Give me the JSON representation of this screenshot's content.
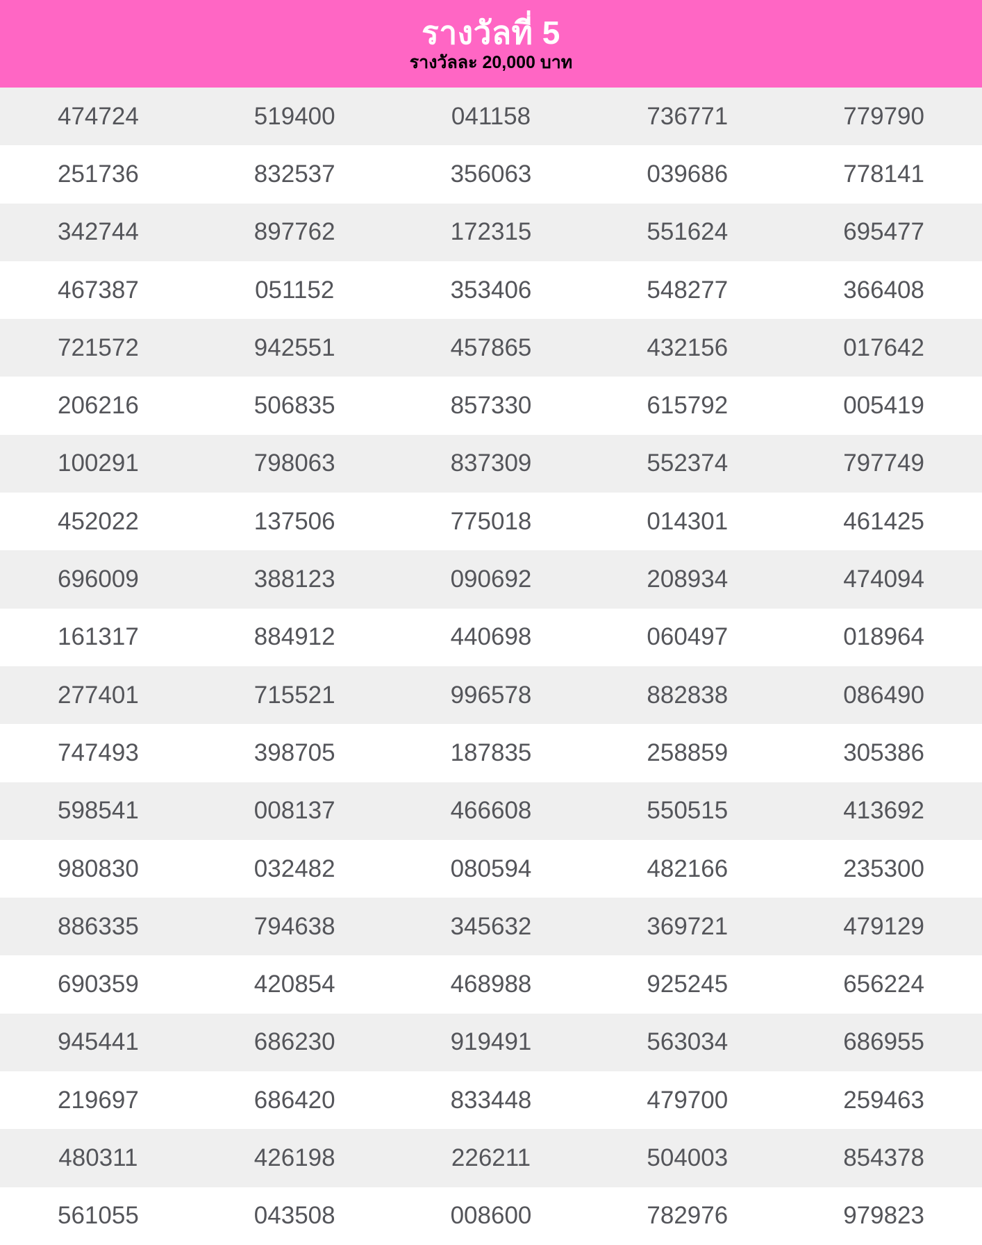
{
  "header": {
    "title": "รางวัลที่ 5",
    "subtitle": "รางวัลละ 20,000 บาท"
  },
  "colors": {
    "header_bg": "#ff66c4",
    "title_color": "#ffffff",
    "subtitle_color": "#000000",
    "row_alt_bg": "#efefef",
    "row_bg": "#ffffff",
    "number_color": "#54555a"
  },
  "table": {
    "columns": 5,
    "rows": [
      [
        "474724",
        "519400",
        "041158",
        "736771",
        "779790"
      ],
      [
        "251736",
        "832537",
        "356063",
        "039686",
        "778141"
      ],
      [
        "342744",
        "897762",
        "172315",
        "551624",
        "695477"
      ],
      [
        "467387",
        "051152",
        "353406",
        "548277",
        "366408"
      ],
      [
        "721572",
        "942551",
        "457865",
        "432156",
        "017642"
      ],
      [
        "206216",
        "506835",
        "857330",
        "615792",
        "005419"
      ],
      [
        "100291",
        "798063",
        "837309",
        "552374",
        "797749"
      ],
      [
        "452022",
        "137506",
        "775018",
        "014301",
        "461425"
      ],
      [
        "696009",
        "388123",
        "090692",
        "208934",
        "474094"
      ],
      [
        "161317",
        "884912",
        "440698",
        "060497",
        "018964"
      ],
      [
        "277401",
        "715521",
        "996578",
        "882838",
        "086490"
      ],
      [
        "747493",
        "398705",
        "187835",
        "258859",
        "305386"
      ],
      [
        "598541",
        "008137",
        "466608",
        "550515",
        "413692"
      ],
      [
        "980830",
        "032482",
        "080594",
        "482166",
        "235300"
      ],
      [
        "886335",
        "794638",
        "345632",
        "369721",
        "479129"
      ],
      [
        "690359",
        "420854",
        "468988",
        "925245",
        "656224"
      ],
      [
        "945441",
        "686230",
        "919491",
        "563034",
        "686955"
      ],
      [
        "219697",
        "686420",
        "833448",
        "479700",
        "259463"
      ],
      [
        "480311",
        "426198",
        "226211",
        "504003",
        "854378"
      ],
      [
        "561055",
        "043508",
        "008600",
        "782976",
        "979823"
      ]
    ]
  }
}
